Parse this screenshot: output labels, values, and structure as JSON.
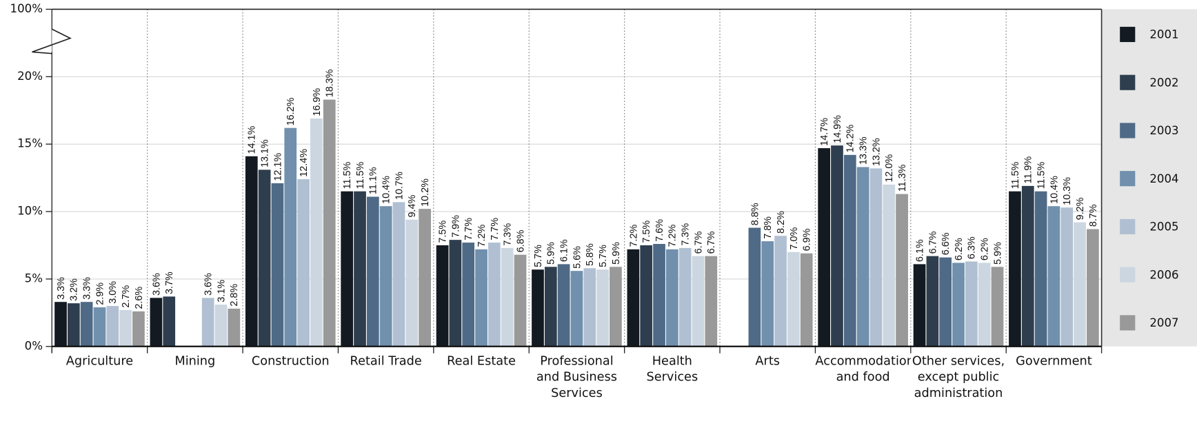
{
  "chart_data": {
    "type": "bar",
    "categories": [
      "Agriculture",
      "Mining",
      "Construction",
      "Retail Trade",
      "Real Estate",
      "Professional and Business Services",
      "Health Services",
      "Arts",
      "Accommodation and food",
      "Other services, except public administration",
      "Government"
    ],
    "series": [
      {
        "name": "2001",
        "color": "#141a22",
        "values": [
          3.3,
          3.6,
          14.1,
          11.5,
          7.5,
          5.7,
          7.2,
          null,
          14.7,
          6.1,
          11.5
        ],
        "value_labels": [
          "3.3%",
          "3.6%",
          "14.1%",
          "11.5%",
          "7.5%",
          "5.7%",
          "7.2%",
          null,
          "14.7%",
          "6.1%",
          "11.5%"
        ]
      },
      {
        "name": "2002",
        "color": "#2e3e4e",
        "values": [
          3.2,
          3.7,
          13.1,
          11.5,
          7.9,
          5.9,
          7.5,
          null,
          14.9,
          6.7,
          11.9
        ],
        "value_labels": [
          "3.2%",
          "3.7%",
          "13.1%",
          "11.5%",
          "7.9%",
          "5.9%",
          "7.5%",
          null,
          "14.9%",
          "6.7%",
          "11.9%"
        ]
      },
      {
        "name": "2003",
        "color": "#4f6a86",
        "values": [
          3.3,
          null,
          12.1,
          11.1,
          7.7,
          6.1,
          7.6,
          8.8,
          14.2,
          6.6,
          11.5
        ],
        "value_labels": [
          "3.3%",
          null,
          "12.1%",
          "11.1%",
          "7.7%",
          "6.1%",
          "7.6%",
          "8.8%",
          "14.2%",
          "6.6%",
          "11.5%"
        ]
      },
      {
        "name": "2004",
        "color": "#7090ad",
        "values": [
          2.9,
          null,
          16.2,
          10.4,
          7.2,
          5.6,
          7.2,
          7.8,
          13.3,
          6.2,
          10.4
        ],
        "value_labels": [
          "2.9%",
          null,
          "16.2%",
          "10.4%",
          "7.2%",
          "5.6%",
          "7.2%",
          "7.8%",
          "13.3%",
          "6.2%",
          "10.4%"
        ]
      },
      {
        "name": "2005",
        "color": "#b0c0d2",
        "values": [
          3.0,
          3.6,
          12.4,
          10.7,
          7.7,
          5.8,
          7.3,
          8.2,
          13.2,
          6.3,
          10.3
        ],
        "value_labels": [
          "3.0%",
          "3.6%",
          "12.4%",
          "10.7%",
          "7.7%",
          "5.8%",
          "7.3%",
          "8.2%",
          "13.2%",
          "6.3%",
          "10.3%"
        ]
      },
      {
        "name": "2006",
        "color": "#ccd6e0",
        "values": [
          2.7,
          3.1,
          16.9,
          9.4,
          7.3,
          5.7,
          6.7,
          7.0,
          12.0,
          6.2,
          9.2
        ],
        "value_labels": [
          "2.7%",
          "3.1%",
          "16.9%",
          "9.4%",
          "7.3%",
          "5.7%",
          "6.7%",
          "7.0%",
          "12.0%",
          "6.2%",
          "9.2%"
        ]
      },
      {
        "name": "2007",
        "color": "#999999",
        "values": [
          2.6,
          2.8,
          18.3,
          10.2,
          6.8,
          5.9,
          6.7,
          6.9,
          11.3,
          5.9,
          8.7
        ],
        "value_labels": [
          "2.6%",
          "2.8%",
          "18.3%",
          "10.2%",
          "6.8%",
          "5.9%",
          "6.7%",
          "6.9%",
          "11.3%",
          "5.9%",
          "8.7%"
        ]
      }
    ],
    "ylim": [
      0,
      100
    ],
    "axis_break": [
      22.5,
      97.5
    ],
    "yticks": [
      {
        "value": 0,
        "label": "0%"
      },
      {
        "value": 5,
        "label": "5%"
      },
      {
        "value": 10,
        "label": "10%"
      },
      {
        "value": 15,
        "label": "15%"
      },
      {
        "value": 20,
        "label": "20%"
      },
      {
        "value": 100,
        "label": "100%"
      }
    ],
    "grid": true,
    "legend": "right"
  }
}
